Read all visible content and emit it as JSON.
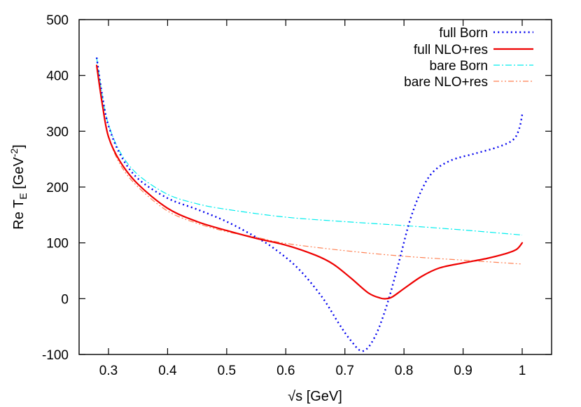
{
  "chart_data": {
    "type": "line",
    "title": "",
    "xlabel": "√s [GeV]",
    "ylabel": "Re T_E [GeV^-2]",
    "ylabel_parts": {
      "main": "Re T",
      "sub": "E",
      "unit_open": " [GeV",
      "sup": "-2",
      "unit_close": "]"
    },
    "xlim": [
      0.245,
      1.05
    ],
    "ylim": [
      -100,
      500
    ],
    "xticks": [
      0.3,
      0.4,
      0.5,
      0.6,
      0.7,
      0.8,
      0.9,
      1.0
    ],
    "xtick_labels": [
      "0.3",
      "0.4",
      "0.5",
      "0.6",
      "0.7",
      "0.8",
      "0.9",
      "1"
    ],
    "yticks": [
      -100,
      0,
      100,
      200,
      300,
      400,
      500
    ],
    "ytick_labels": [
      "-100",
      "0",
      "100",
      "200",
      "300",
      "400",
      "500"
    ],
    "grid": false,
    "legend_position": "top-right",
    "series": [
      {
        "name": "full Born",
        "color": "#0000ee",
        "style": "dotted",
        "x": [
          0.28,
          0.29,
          0.3,
          0.32,
          0.35,
          0.4,
          0.45,
          0.5,
          0.55,
          0.58,
          0.62,
          0.66,
          0.69,
          0.71,
          0.73,
          0.75,
          0.77,
          0.79,
          0.81,
          0.83,
          0.85,
          0.88,
          0.92,
          0.96,
          0.985,
          0.995,
          1.0
        ],
        "values": [
          432,
          360,
          310,
          258,
          215,
          180,
          160,
          138,
          110,
          90,
          55,
          5,
          -45,
          -75,
          -94,
          -70,
          -15,
          60,
          140,
          195,
          228,
          248,
          260,
          272,
          285,
          305,
          330
        ]
      },
      {
        "name": "full NLO+res",
        "color": "#ee0000",
        "style": "solid",
        "x": [
          0.28,
          0.29,
          0.3,
          0.32,
          0.35,
          0.4,
          0.45,
          0.5,
          0.55,
          0.6,
          0.65,
          0.68,
          0.71,
          0.74,
          0.76,
          0.77,
          0.78,
          0.8,
          0.83,
          0.86,
          0.9,
          0.94,
          0.97,
          0.99,
          1.0
        ],
        "values": [
          418,
          345,
          290,
          245,
          205,
          162,
          138,
          122,
          108,
          96,
          78,
          62,
          37,
          10,
          1,
          0,
          3,
          18,
          40,
          55,
          64,
          72,
          80,
          88,
          100
        ]
      },
      {
        "name": "bare Born",
        "color": "#00eeee",
        "style": "dash-dot",
        "x": [
          0.28,
          0.29,
          0.3,
          0.32,
          0.35,
          0.4,
          0.45,
          0.5,
          0.6,
          0.7,
          0.8,
          0.9,
          1.0
        ],
        "values": [
          432,
          360,
          312,
          262,
          222,
          187,
          170,
          160,
          146,
          138,
          131,
          123,
          114
        ]
      },
      {
        "name": "bare NLO+res",
        "color": "#ff7f50",
        "style": "dash-dot-dot",
        "x": [
          0.28,
          0.29,
          0.3,
          0.32,
          0.35,
          0.4,
          0.45,
          0.5,
          0.55,
          0.6,
          0.7,
          0.8,
          0.9,
          1.0
        ],
        "values": [
          416,
          342,
          290,
          240,
          200,
          157,
          135,
          120,
          110,
          99,
          86,
          76,
          69,
          62
        ]
      }
    ]
  }
}
